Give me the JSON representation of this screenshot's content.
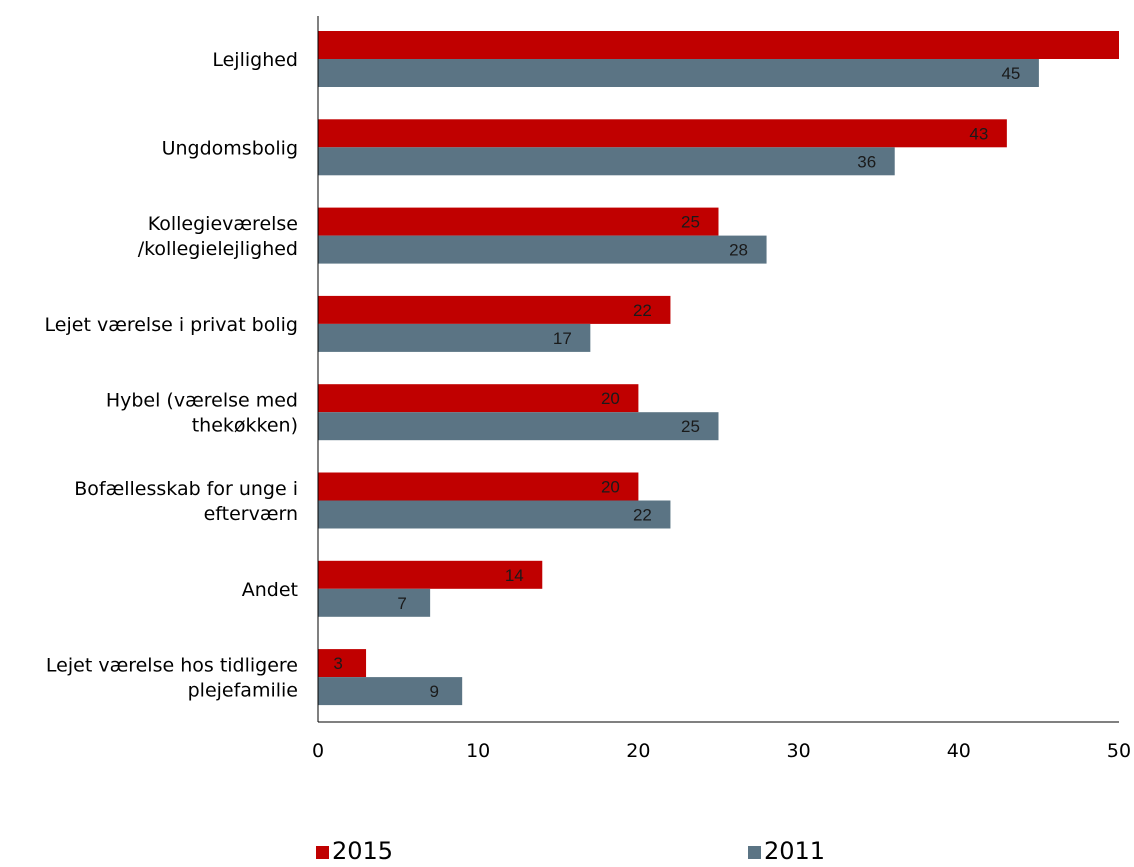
{
  "chart_data": {
    "type": "bar",
    "orientation": "horizontal",
    "title": "",
    "xlabel": "",
    "ylabel": "",
    "xlim": [
      0,
      50
    ],
    "xticks": [
      0,
      10,
      20,
      30,
      40,
      50
    ],
    "grid": false,
    "legend_position": "bottom",
    "categories": [
      [
        "Lejlighed"
      ],
      [
        "Ungdomsbolig"
      ],
      [
        "Kollegieværelse",
        "/kollegielejlighed"
      ],
      [
        "Lejet værelse i privat bolig"
      ],
      [
        "Hybel (værelse med",
        "thekøkken)"
      ],
      [
        "Bofællesskab for unge i",
        "efterværn"
      ],
      [
        "Andet"
      ],
      [
        "Lejet værelse hos tidligere",
        "plejefamilie"
      ]
    ],
    "series": [
      {
        "name": "2015",
        "color": "#c00000",
        "values": [
          51,
          43,
          25,
          22,
          20,
          20,
          14,
          3
        ],
        "labels": [
          "",
          "43",
          "25",
          "22",
          "20",
          "20",
          "14",
          "3"
        ]
      },
      {
        "name": "2011",
        "color": "#5b7484",
        "values": [
          45,
          36,
          28,
          17,
          25,
          22,
          7,
          9
        ],
        "labels": [
          "45",
          "36",
          "28",
          "17",
          "25",
          "22",
          "7",
          "9"
        ]
      }
    ]
  }
}
